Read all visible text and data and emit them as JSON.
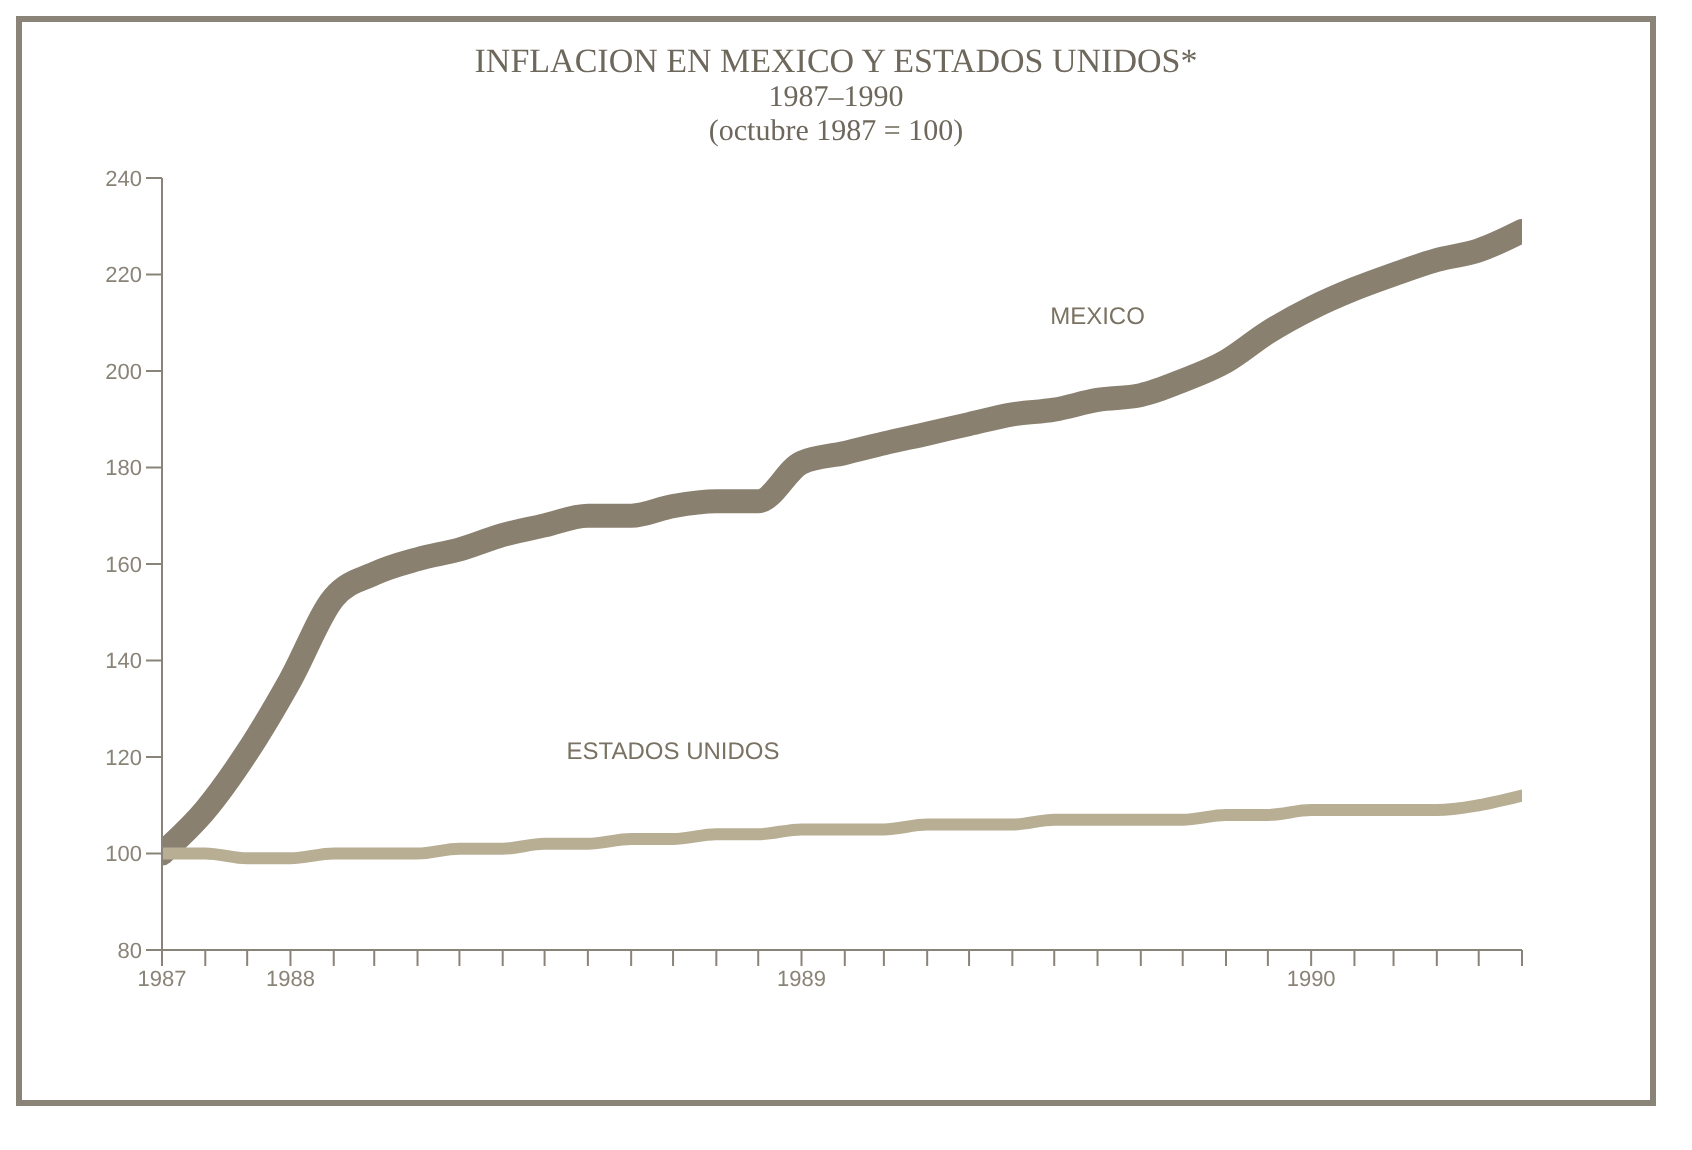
{
  "chart_data": {
    "type": "line",
    "title": "INFLACION EN MEXICO Y ESTADOS UNIDOS*",
    "subtitle": "1987–1990\n(octubre 1987 = 100)",
    "x": [
      "1987-10",
      "1987-11",
      "1987-12",
      "1988-01",
      "1988-02",
      "1988-03",
      "1988-04",
      "1988-05",
      "1988-06",
      "1988-07",
      "1988-08",
      "1988-09",
      "1988-10",
      "1988-11",
      "1988-12",
      "1989-01",
      "1989-02",
      "1989-03",
      "1989-04",
      "1989-05",
      "1989-06",
      "1989-07",
      "1989-08",
      "1989-09",
      "1989-10",
      "1989-11",
      "1989-12",
      "1990-01",
      "1990-02",
      "1990-03",
      "1990-04",
      "1990-05",
      "1990-06"
    ],
    "series": [
      {
        "name": "MEXICO",
        "color": "#8a8070",
        "values": [
          100,
          109,
          121,
          136,
          153,
          158,
          161,
          163,
          166,
          168,
          170,
          170,
          172,
          173,
          173,
          181,
          183,
          185,
          187,
          189,
          191,
          192,
          194,
          195,
          198,
          202,
          208,
          213,
          217,
          220,
          223,
          225,
          229
        ]
      },
      {
        "name": "ESTADOS UNIDOS",
        "color": "#b8ae94",
        "values": [
          100,
          100,
          99,
          99,
          100,
          100,
          100,
          101,
          101,
          102,
          102,
          103,
          103,
          104,
          104,
          105,
          105,
          105,
          106,
          106,
          106,
          107,
          107,
          107,
          107,
          108,
          108,
          109,
          109,
          109,
          109,
          110,
          112
        ]
      }
    ],
    "xlim": [
      "1987-10",
      "1990-06"
    ],
    "xticks": [
      {
        "value": "1987-10",
        "label": "1987"
      },
      {
        "value": "1987-11",
        "label": null
      },
      {
        "value": "1987-12",
        "label": null
      },
      {
        "value": "1988-01",
        "label": "1988"
      },
      {
        "value": "1988-02",
        "label": null
      },
      {
        "value": "1988-03",
        "label": null
      },
      {
        "value": "1988-04",
        "label": null
      },
      {
        "value": "1988-05",
        "label": null
      },
      {
        "value": "1988-06",
        "label": null
      },
      {
        "value": "1988-07",
        "label": null
      },
      {
        "value": "1988-08",
        "label": null
      },
      {
        "value": "1988-09",
        "label": null
      },
      {
        "value": "1988-10",
        "label": null
      },
      {
        "value": "1988-11",
        "label": null
      },
      {
        "value": "1988-12",
        "label": null
      },
      {
        "value": "1989-01",
        "label": "1989"
      },
      {
        "value": "1989-02",
        "label": null
      },
      {
        "value": "1989-03",
        "label": null
      },
      {
        "value": "1989-04",
        "label": null
      },
      {
        "value": "1989-05",
        "label": null
      },
      {
        "value": "1989-06",
        "label": null
      },
      {
        "value": "1989-07",
        "label": null
      },
      {
        "value": "1989-08",
        "label": null
      },
      {
        "value": "1989-09",
        "label": null
      },
      {
        "value": "1989-10",
        "label": null
      },
      {
        "value": "1989-11",
        "label": null
      },
      {
        "value": "1989-12",
        "label": null
      },
      {
        "value": "1990-01",
        "label": "1990"
      },
      {
        "value": "1990-02",
        "label": null
      },
      {
        "value": "1990-03",
        "label": null
      },
      {
        "value": "1990-04",
        "label": null
      },
      {
        "value": "1990-05",
        "label": null
      },
      {
        "value": "1990-06",
        "label": null
      }
    ],
    "ylim": [
      80,
      240
    ],
    "yticks": [
      80,
      100,
      120,
      140,
      160,
      180,
      200,
      220,
      240
    ],
    "grid": false,
    "legend": false,
    "marker": "none",
    "line_style": "solid"
  }
}
